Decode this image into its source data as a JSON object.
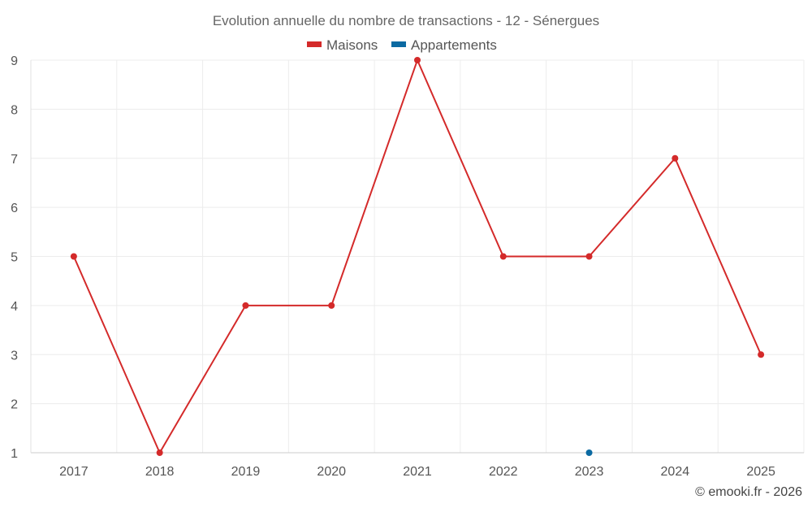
{
  "chart_data": {
    "type": "line",
    "title": "Evolution annuelle du nombre de transactions - 12 - Sénergues",
    "categories": [
      "2017",
      "2018",
      "2019",
      "2020",
      "2021",
      "2022",
      "2023",
      "2024",
      "2025"
    ],
    "ylim": [
      1,
      9
    ],
    "yticks": [
      "1",
      "2",
      "3",
      "4",
      "5",
      "6",
      "7",
      "8",
      "9"
    ],
    "grid": true,
    "legend_position": "top-center",
    "series": [
      {
        "name": "Maisons",
        "color": "#d42a2a",
        "values": [
          5,
          1,
          4,
          4,
          9,
          5,
          5,
          7,
          3
        ]
      },
      {
        "name": "Appartements",
        "color": "#0b6aa2",
        "values": [
          null,
          null,
          null,
          null,
          null,
          null,
          1,
          null,
          null
        ]
      }
    ]
  },
  "footer": {
    "credit": "© emooki.fr - 2026"
  }
}
